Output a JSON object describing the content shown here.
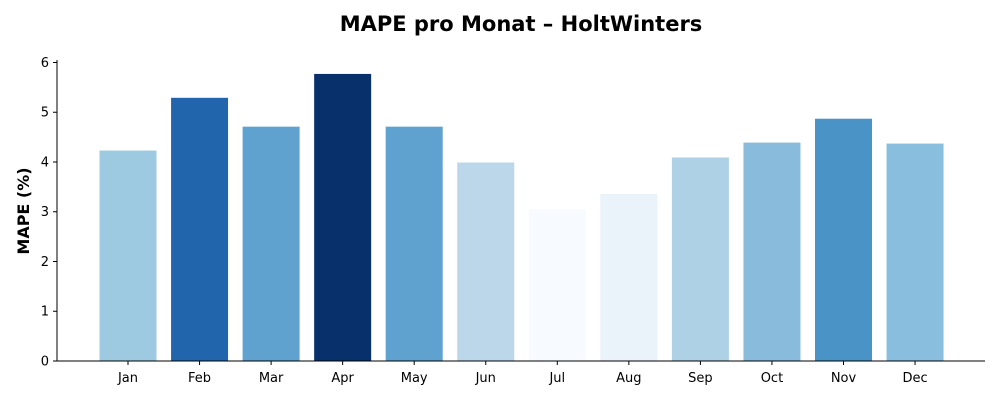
{
  "chart_data": {
    "type": "bar",
    "title": "MAPE pro Monat – HoltWinters",
    "xlabel": "",
    "ylabel": "MAPE (%)",
    "categories": [
      "Jan",
      "Feb",
      "Mar",
      "Apr",
      "May",
      "Jun",
      "Jul",
      "Aug",
      "Sep",
      "Oct",
      "Nov",
      "Dec"
    ],
    "values": [
      4.23,
      5.29,
      4.71,
      5.77,
      4.71,
      3.99,
      3.05,
      3.36,
      4.09,
      4.39,
      4.87,
      4.37
    ],
    "bar_colors": [
      "#9ecae1",
      "#2166ac",
      "#5fa2cf",
      "#08306b",
      "#5fa2cf",
      "#bcd7ea",
      "#f7fbff",
      "#eaf2fa",
      "#afd1e6",
      "#88bbdc",
      "#4a93c6",
      "#8abedf"
    ],
    "ylim": [
      0,
      6.05
    ],
    "yticks": [
      0,
      1,
      2,
      3,
      4,
      5,
      6
    ],
    "grid": false,
    "legend": "none"
  }
}
